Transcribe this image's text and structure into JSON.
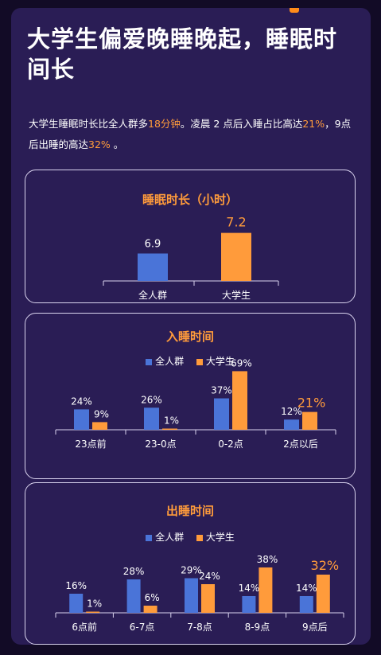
{
  "title": "大学生偏爱晚睡晚起，睡眠时间长",
  "intro": {
    "p1": "大学生睡眠时长比全人群多",
    "h1": "18分钟",
    "p2": "。凌晨 2 点后入睡占比高达",
    "h2": "21%",
    "p3": "，9点后出睡的高达",
    "h3": "32%",
    "p4": " 。"
  },
  "colors": {
    "all": "#4a74d8",
    "student": "#ff9b3b",
    "text": "#ffffff",
    "axis": "#d9d3ee"
  },
  "legend": {
    "all": "全人群",
    "student": "大学生"
  },
  "chart_data": [
    {
      "type": "bar",
      "title": "睡眠时长（小时）",
      "categories": [
        "全人群",
        "大学生"
      ],
      "values": [
        6.9,
        7.2
      ],
      "labels": [
        "6.9",
        "7.2"
      ],
      "ylim": [
        6.5,
        7.3
      ],
      "legend": "none"
    },
    {
      "type": "bar",
      "title": "入睡时间",
      "categories": [
        "23点前",
        "23-0点",
        "0-2点",
        "2点以后"
      ],
      "series": [
        {
          "name": "全人群",
          "values": [
            24,
            26,
            37,
            12
          ],
          "labels": [
            "24%",
            "26%",
            "37%",
            "12%"
          ]
        },
        {
          "name": "大学生",
          "values": [
            9,
            1,
            69,
            21
          ],
          "labels": [
            "9%",
            "1%",
            "69%",
            "21%"
          ]
        }
      ],
      "highlight": {
        "series": 1,
        "index": 3
      },
      "ylim": [
        0,
        75
      ],
      "legend": "top-center"
    },
    {
      "type": "bar",
      "title": "出睡时间",
      "categories": [
        "6点前",
        "6-7点",
        "7-8点",
        "8-9点",
        "9点后"
      ],
      "series": [
        {
          "name": "全人群",
          "values": [
            16,
            28,
            29,
            14,
            14
          ],
          "labels": [
            "16%",
            "28%",
            "29%",
            "14%",
            "14%"
          ]
        },
        {
          "name": "大学生",
          "values": [
            1,
            6,
            24,
            38,
            32
          ],
          "labels": [
            "1%",
            "6%",
            "24%",
            "38%",
            "32%"
          ]
        }
      ],
      "highlight": {
        "series": 1,
        "index": 4
      },
      "ylim": [
        0,
        40
      ],
      "legend": "top-center"
    }
  ]
}
